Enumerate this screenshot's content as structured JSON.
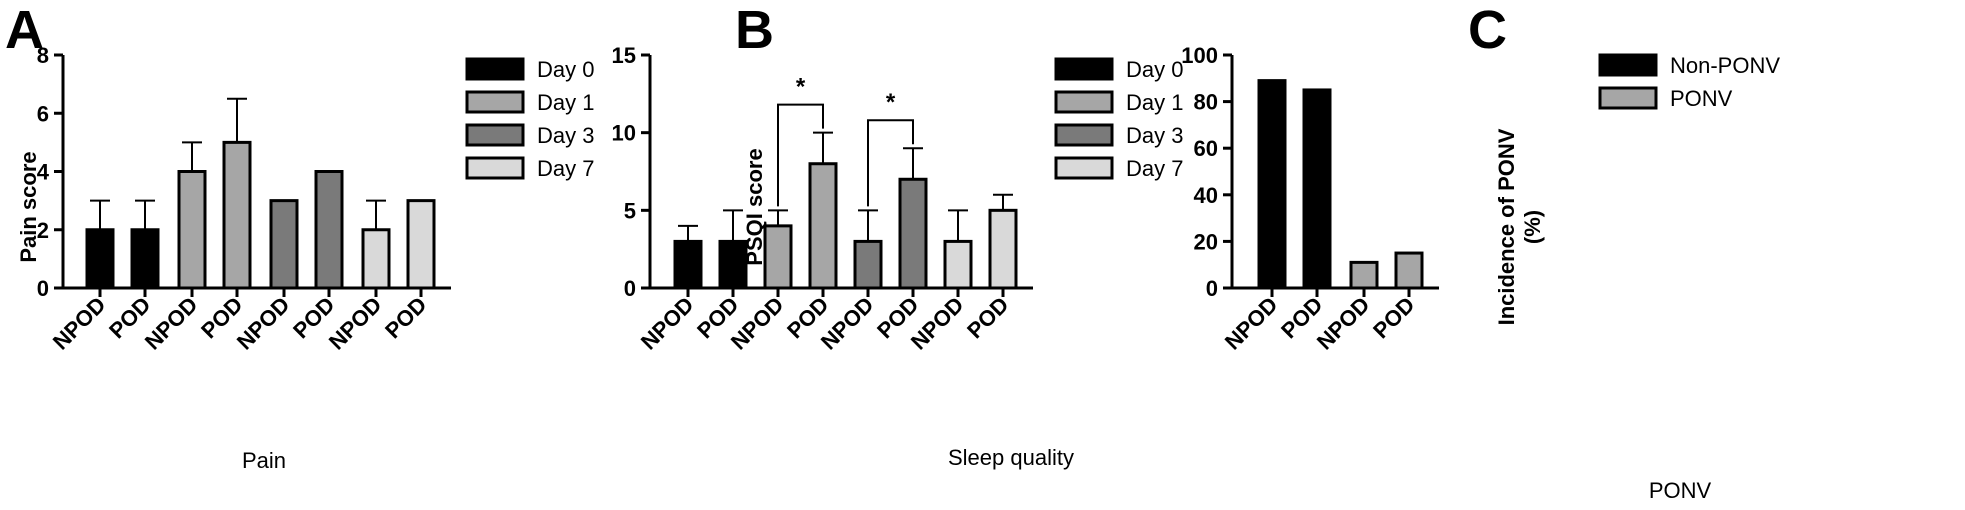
{
  "chart_data": [
    {
      "panel": "A",
      "type": "bar",
      "ylabel": "Pain score",
      "xlabel": "Pain",
      "ylim": [
        0,
        8
      ],
      "yticks": [
        0,
        2,
        4,
        6,
        8
      ],
      "legend": {
        "placement": "right",
        "entries": [
          "Day 0",
          "Day 1",
          "Day 3",
          "Day 7"
        ]
      },
      "series_colors": [
        "#000000",
        "#a6a6a6",
        "#7a7a7a",
        "#d9d9d9"
      ],
      "groups": [
        {
          "name": "Day 0",
          "bars": [
            {
              "category": "NPOD",
              "value": 2,
              "error": 1
            },
            {
              "category": "POD",
              "value": 2,
              "error": 1
            }
          ]
        },
        {
          "name": "Day 1",
          "bars": [
            {
              "category": "NPOD",
              "value": 4,
              "error": 1
            },
            {
              "category": "POD",
              "value": 5,
              "error": 1.5
            }
          ]
        },
        {
          "name": "Day 3",
          "bars": [
            {
              "category": "NPOD",
              "value": 3,
              "error": 0
            },
            {
              "category": "POD",
              "value": 4,
              "error": 0
            }
          ]
        },
        {
          "name": "Day 7",
          "bars": [
            {
              "category": "NPOD",
              "value": 2,
              "error": 1
            },
            {
              "category": "POD",
              "value": 3,
              "error": 0
            }
          ]
        }
      ],
      "significance": []
    },
    {
      "panel": "B",
      "type": "bar",
      "ylabel": "PSQI score",
      "xlabel": "Sleep quality",
      "ylim": [
        0,
        15
      ],
      "yticks": [
        0,
        5,
        10,
        15
      ],
      "legend": {
        "placement": "right",
        "entries": [
          "Day 0",
          "Day 1",
          "Day 3",
          "Day 7"
        ]
      },
      "series_colors": [
        "#000000",
        "#a6a6a6",
        "#7a7a7a",
        "#d9d9d9"
      ],
      "groups": [
        {
          "name": "Day 0",
          "bars": [
            {
              "category": "NPOD",
              "value": 3,
              "error": 1
            },
            {
              "category": "POD",
              "value": 3,
              "error": 2
            }
          ]
        },
        {
          "name": "Day 1",
          "bars": [
            {
              "category": "NPOD",
              "value": 4,
              "error": 1
            },
            {
              "category": "POD",
              "value": 8,
              "error": 2
            }
          ]
        },
        {
          "name": "Day 3",
          "bars": [
            {
              "category": "NPOD",
              "value": 3,
              "error": 2
            },
            {
              "category": "POD",
              "value": 7,
              "error": 2
            }
          ]
        },
        {
          "name": "Day 7",
          "bars": [
            {
              "category": "NPOD",
              "value": 3,
              "error": 2
            },
            {
              "category": "POD",
              "value": 5,
              "error": 1
            }
          ]
        }
      ],
      "significance": [
        {
          "group": 1,
          "label": "*"
        },
        {
          "group": 2,
          "label": "*"
        }
      ]
    },
    {
      "panel": "C",
      "type": "bar",
      "ylabel": "Incidence of PONV (%)",
      "xlabel": "PONV",
      "ylim": [
        0,
        100
      ],
      "yticks": [
        0,
        20,
        40,
        60,
        80,
        100
      ],
      "legend": {
        "placement": "right",
        "entries": [
          "Non-PONV",
          "PONV"
        ]
      },
      "series_colors": [
        "#000000",
        "#a6a6a6"
      ],
      "groups": [
        {
          "name": "Non-PONV",
          "bars": [
            {
              "category": "NPOD",
              "value": 89
            },
            {
              "category": "POD",
              "value": 85
            }
          ]
        },
        {
          "name": "PONV",
          "bars": [
            {
              "category": "NPOD",
              "value": 11
            },
            {
              "category": "POD",
              "value": 15
            }
          ]
        }
      ],
      "significance": []
    }
  ]
}
